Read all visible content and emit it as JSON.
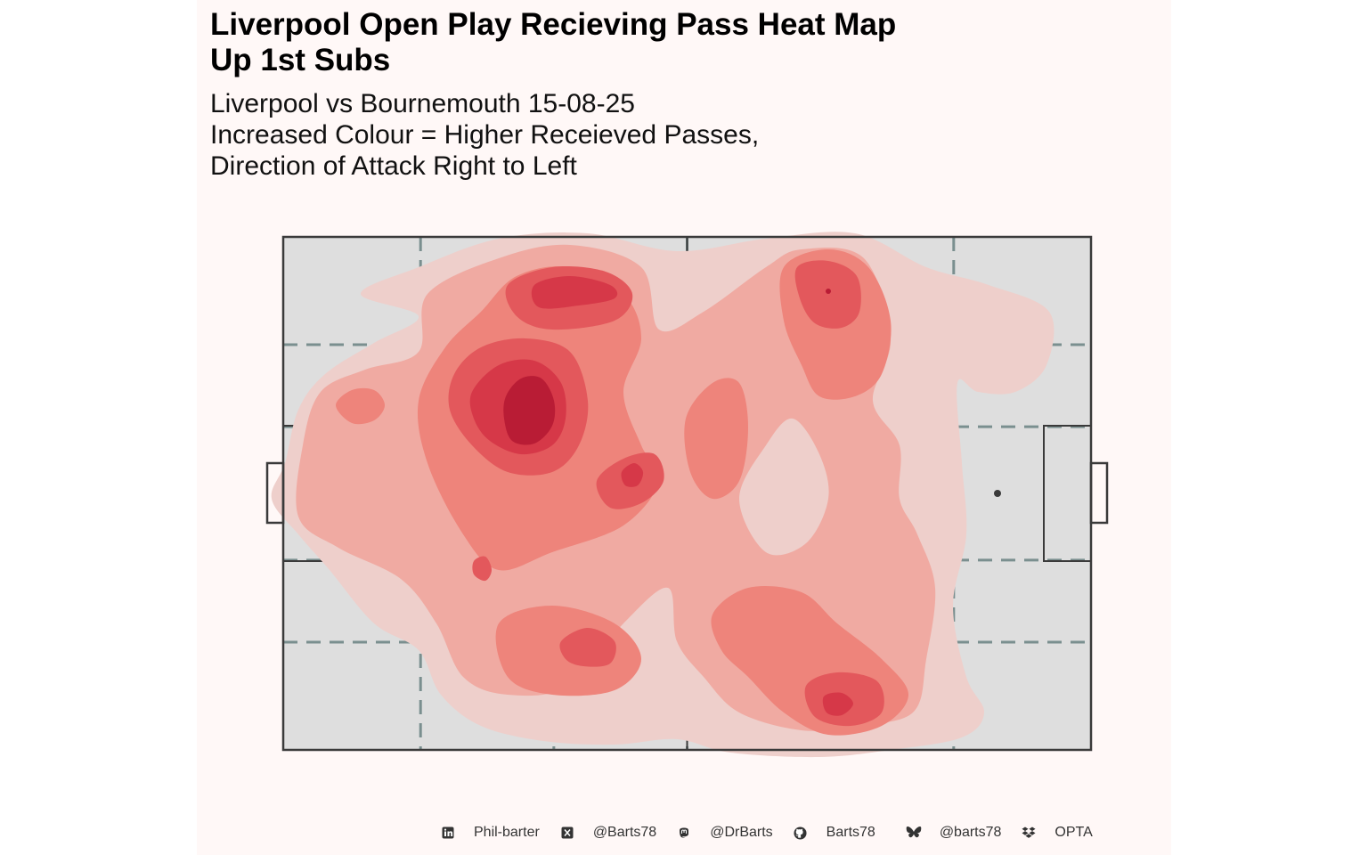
{
  "title": {
    "line1": "Liverpool Open Play Recieving Pass Heat Map",
    "line2": "Up 1st Subs"
  },
  "subtitle": {
    "line1": "Liverpool vs Bournemouth 15-08-25",
    "line2": "Increased Colour = Higher Receieved Passes,",
    "line3": "Direction of Attack Right to Left"
  },
  "footer": {
    "linkedin": {
      "icon": "linkedin-icon",
      "label": "Phil-barter"
    },
    "x": {
      "icon": "x-icon",
      "label": "@Barts78"
    },
    "mastodon": {
      "icon": "mastodon-icon",
      "label": "@DrBarts"
    },
    "github": {
      "icon": "github-icon",
      "label": "Barts78"
    },
    "bluesky": {
      "icon": "bluesky-icon",
      "label": "@barts78"
    },
    "dropbox": {
      "icon": "dropbox-icon",
      "label": "OPTA"
    }
  },
  "colors": {
    "panel_bg": "#fff8f7",
    "pitch_fill": "#dedede",
    "pitch_lines": "#3a3a3a",
    "zone_lines": "#7a8f8f",
    "density_levels": [
      "#eecfcb",
      "#f0aaa2",
      "#ee847b",
      "#e3585c",
      "#d63848",
      "#b91c35"
    ]
  },
  "chart_data": {
    "type": "heatmap",
    "x_range": [
      0,
      100
    ],
    "y_range": [
      0,
      100
    ],
    "direction_of_attack": "right to left",
    "zone_lines": {
      "x": [
        17,
        33.5,
        50,
        66.5,
        83
      ],
      "y": [
        21,
        37,
        63,
        79
      ]
    },
    "density_levels": 6,
    "hotspots": [
      {
        "x": 33,
        "y": 36,
        "level": 6
      },
      {
        "x": 32.5,
        "y": 12,
        "level": 5
      },
      {
        "x": 67.5,
        "y": 11,
        "level": 5
      },
      {
        "x": 68,
        "y": 91,
        "level": 5
      },
      {
        "x": 43.5,
        "y": 49,
        "level": 5
      },
      {
        "x": 37,
        "y": 80,
        "level": 4
      },
      {
        "x": 9.5,
        "y": 33,
        "level": 3
      },
      {
        "x": 24.5,
        "y": 65,
        "level": 4
      },
      {
        "x": 18.5,
        "y": 51,
        "level": 3
      },
      {
        "x": 53.5,
        "y": 62,
        "level": 3
      },
      {
        "x": 46,
        "y": 67,
        "level": 2
      },
      {
        "x": 91,
        "y": 15,
        "level": 1
      }
    ]
  }
}
